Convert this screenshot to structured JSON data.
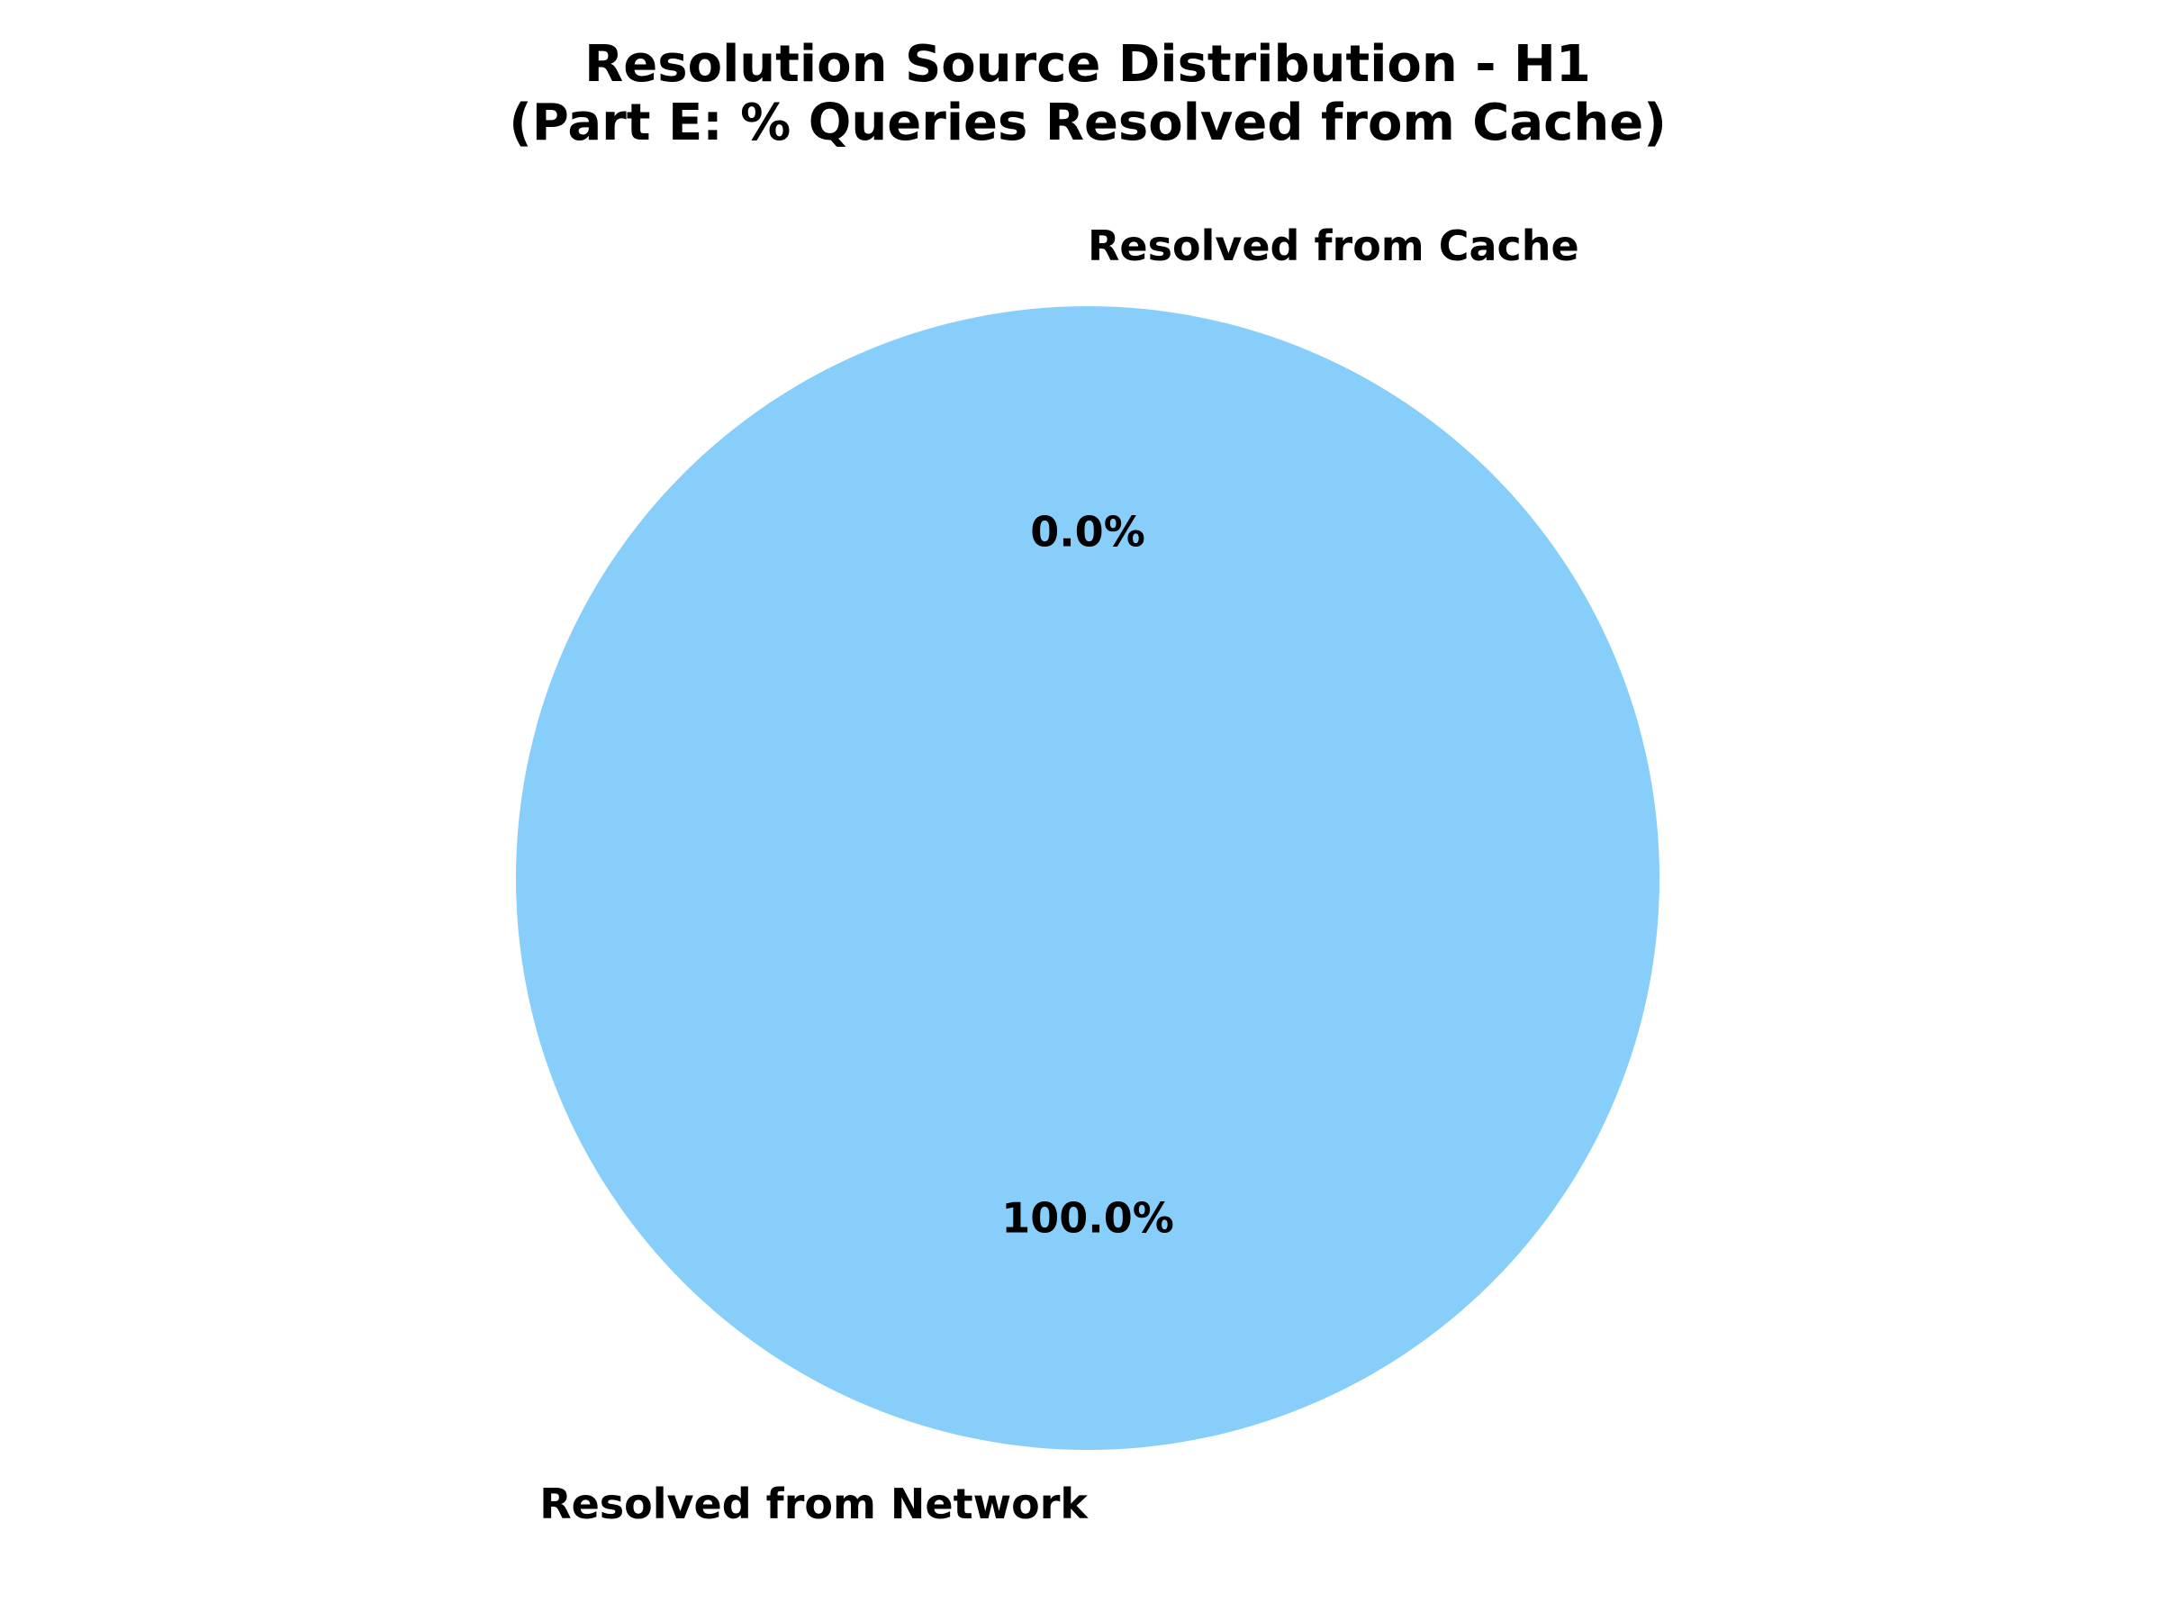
{
  "chart_data": {
    "type": "pie",
    "title": "Resolution Source Distribution - H1\n(Part E: % Queries Resolved from Cache)",
    "title_lines": [
      "Resolution Source Distribution - H1",
      "(Part E: % Queries Resolved from Cache)"
    ],
    "slices": [
      {
        "label": "Resolved from Cache",
        "value": 0.0,
        "pct_label": "0.0%",
        "color": "#90EE90"
      },
      {
        "label": "Resolved from Network",
        "value": 100.0,
        "pct_label": "100.0%",
        "color": "#87CEFA"
      }
    ],
    "start_angle_deg": 90,
    "direction": "counterclockwise",
    "legend": "none"
  }
}
